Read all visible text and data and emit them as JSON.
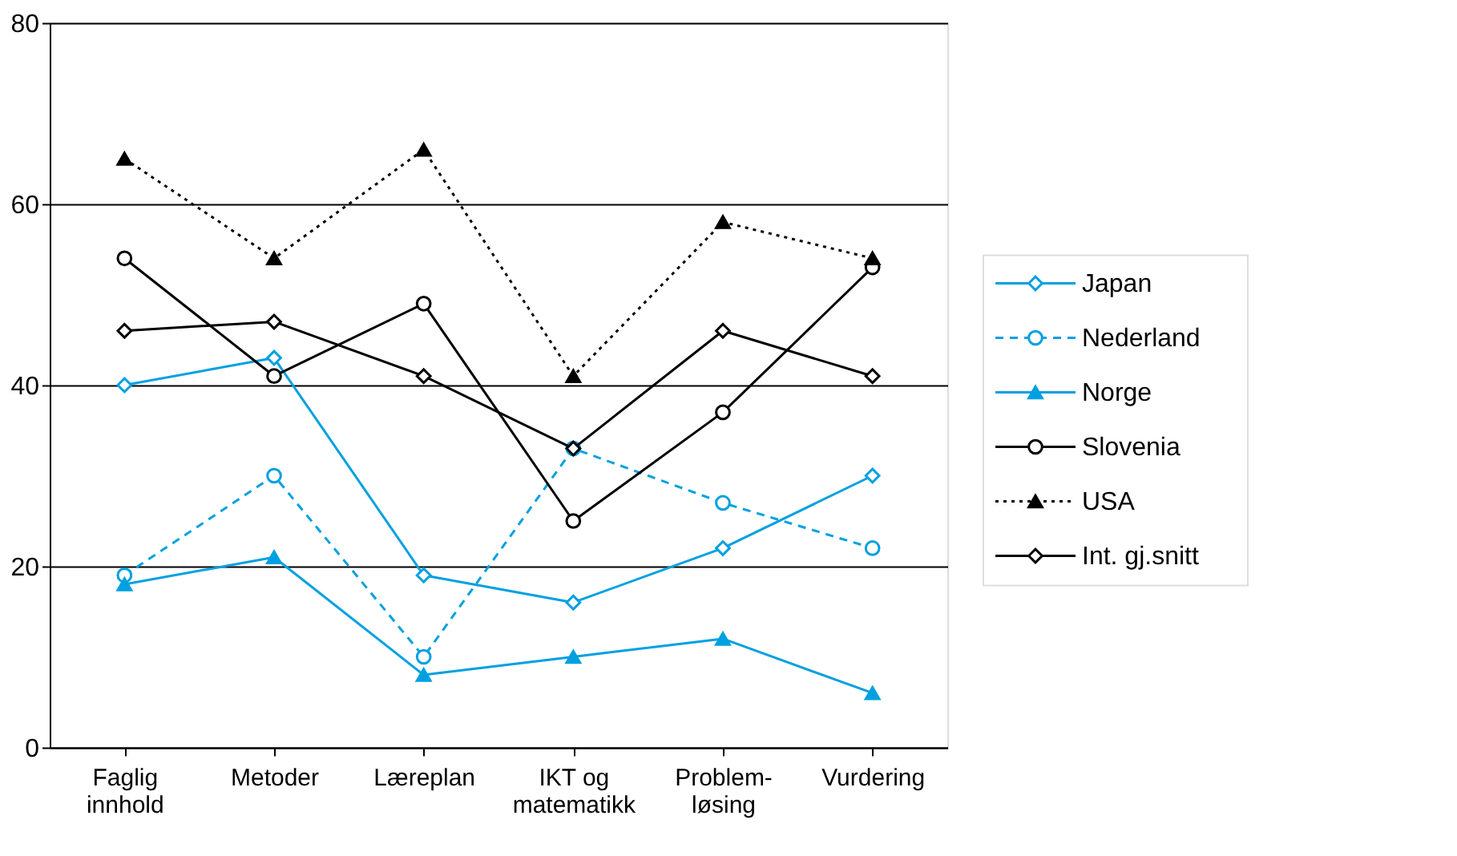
{
  "chart_data": {
    "type": "line",
    "categories": [
      "Faglig\ninnhold",
      "Metoder",
      "Læreplan",
      "IKT og\nmatematikk",
      "Problem-\nløsing",
      "Vurdering"
    ],
    "series": [
      {
        "name": "Japan",
        "color": "#00a0e0",
        "marker": "diamond",
        "line_style": "solid",
        "values": [
          40,
          43,
          19,
          16,
          22,
          30
        ]
      },
      {
        "name": "Nederland",
        "color": "#00a0e0",
        "marker": "circle",
        "line_style": "dashed",
        "values": [
          19,
          30,
          10,
          33,
          27,
          22
        ]
      },
      {
        "name": "Norge",
        "color": "#00a0e0",
        "marker": "triangle",
        "line_style": "solid",
        "values": [
          18,
          21,
          8,
          10,
          12,
          6
        ]
      },
      {
        "name": "Slovenia",
        "color": "#000000",
        "marker": "circle",
        "line_style": "solid",
        "values": [
          54,
          41,
          49,
          25,
          37,
          53
        ]
      },
      {
        "name": "USA",
        "color": "#000000",
        "marker": "triangle",
        "line_style": "dotted",
        "values": [
          65,
          54,
          66,
          41,
          58,
          54
        ]
      },
      {
        "name": "Int. gj.snitt",
        "color": "#000000",
        "marker": "diamond",
        "line_style": "solid",
        "values": [
          46,
          47,
          41,
          33,
          46,
          41
        ]
      }
    ],
    "ylim": [
      0,
      80
    ],
    "yticks": [
      0,
      20,
      40,
      60,
      80
    ],
    "grid": "y",
    "legend": "right"
  }
}
